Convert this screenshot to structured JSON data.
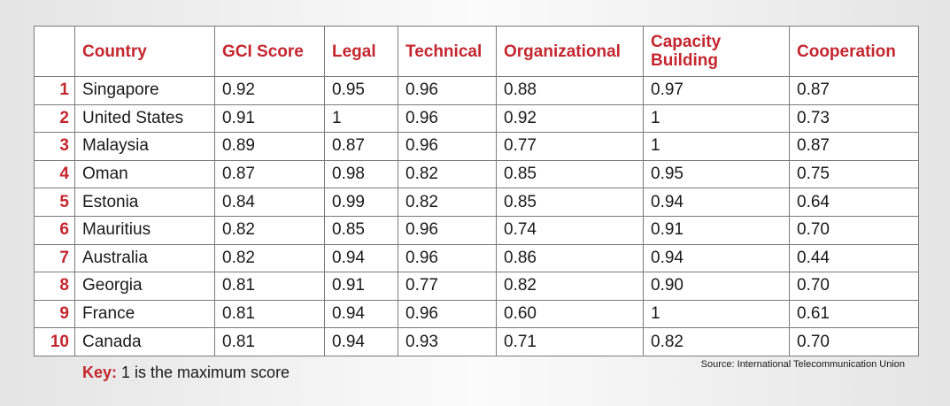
{
  "chart_data": {
    "type": "table",
    "columns": [
      "Country",
      "GCI Score",
      "Legal",
      "Technical",
      "Organizational",
      "Capacity Building",
      "Cooperation"
    ],
    "rows": [
      {
        "rank": "1",
        "country": "Singapore",
        "gci": "0.92",
        "legal": "0.95",
        "technical": "0.96",
        "organizational": "0.88",
        "capacity": "0.97",
        "cooperation": "0.87"
      },
      {
        "rank": "2",
        "country": "United States",
        "gci": "0.91",
        "legal": "1",
        "technical": "0.96",
        "organizational": "0.92",
        "capacity": "1",
        "cooperation": "0.73"
      },
      {
        "rank": "3",
        "country": "Malaysia",
        "gci": "0.89",
        "legal": "0.87",
        "technical": "0.96",
        "organizational": "0.77",
        "capacity": "1",
        "cooperation": "0.87"
      },
      {
        "rank": "4",
        "country": "Oman",
        "gci": "0.87",
        "legal": "0.98",
        "technical": "0.82",
        "organizational": "0.85",
        "capacity": "0.95",
        "cooperation": "0.75"
      },
      {
        "rank": "5",
        "country": "Estonia",
        "gci": "0.84",
        "legal": "0.99",
        "technical": "0.82",
        "organizational": "0.85",
        "capacity": "0.94",
        "cooperation": "0.64"
      },
      {
        "rank": "6",
        "country": "Mauritius",
        "gci": "0.82",
        "legal": "0.85",
        "technical": "0.96",
        "organizational": "0.74",
        "capacity": "0.91",
        "cooperation": "0.70"
      },
      {
        "rank": "7",
        "country": "Australia",
        "gci": "0.82",
        "legal": "0.94",
        "technical": "0.96",
        "organizational": "0.86",
        "capacity": "0.94",
        "cooperation": "0.44"
      },
      {
        "rank": "8",
        "country": "Georgia",
        "gci": "0.81",
        "legal": "0.91",
        "technical": "0.77",
        "organizational": "0.82",
        "capacity": "0.90",
        "cooperation": "0.70"
      },
      {
        "rank": "9",
        "country": "France",
        "gci": "0.81",
        "legal": "0.94",
        "technical": "0.96",
        "organizational": "0.60",
        "capacity": "1",
        "cooperation": "0.61"
      },
      {
        "rank": "10",
        "country": "Canada",
        "gci": "0.81",
        "legal": "0.94",
        "technical": "0.93",
        "organizational": "0.71",
        "capacity": "0.82",
        "cooperation": "0.70"
      }
    ],
    "key_label": "Key:",
    "key_text": " 1 is the maximum score",
    "source": "Source: International Telecommunication Union"
  },
  "colors": {
    "accent": "#c4262e",
    "text": "#1a1a1a",
    "border": "#7a7a7a"
  }
}
